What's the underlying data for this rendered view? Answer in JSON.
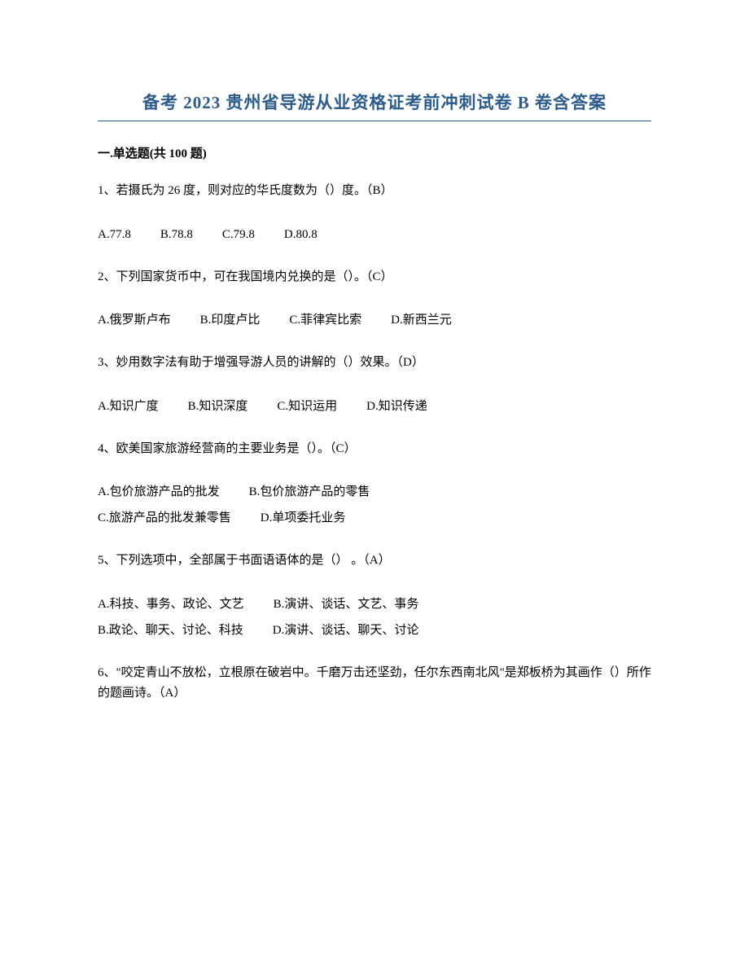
{
  "title": "备考 2023 贵州省导游从业资格证考前冲刺试卷 B 卷含答案",
  "section_header": "一.单选题(共 100 题)",
  "questions": [
    {
      "q": "1、若摄氏为 26 度，则对应的华氏度数为（）度。（B）",
      "options": [
        [
          "A.77.8",
          "B.78.8",
          "C.79.8",
          "D.80.8"
        ]
      ]
    },
    {
      "q": "2、下列国家货币中，可在我国境内兑换的是（）。（C）",
      "options": [
        [
          "A.俄罗斯卢布",
          "B.印度卢比",
          "C.菲律宾比索",
          "D.新西兰元"
        ]
      ]
    },
    {
      "q": "3、妙用数字法有助于增强导游人员的讲解的（）效果。（D）",
      "options": [
        [
          "A.知识广度",
          "B.知识深度",
          "C.知识运用",
          "D.知识传递"
        ]
      ]
    },
    {
      "q": "4、欧美国家旅游经营商的主要业务是（）。（C）",
      "options": [
        [
          "A.包价旅游产品的批发",
          "B.包价旅游产品的零售"
        ],
        [
          "C.旅游产品的批发兼零售",
          "D.单项委托业务"
        ]
      ]
    },
    {
      "q": "5、下列选项中，全部属于书面语语体的是（） 。（A）",
      "options": [
        [
          "A.科技、事务、政论、文艺",
          "B.演讲、谈话、文艺、事务"
        ],
        [
          "B.政论、聊天、讨论、科技",
          "D.演讲、谈话、聊天、讨论"
        ]
      ]
    },
    {
      "q": "6、\"咬定青山不放松，立根原在破岩中。千磨万击还坚劲，任尔东西南北风\"是郑板桥为其画作（）所作的题画诗。（A）",
      "options": []
    }
  ]
}
